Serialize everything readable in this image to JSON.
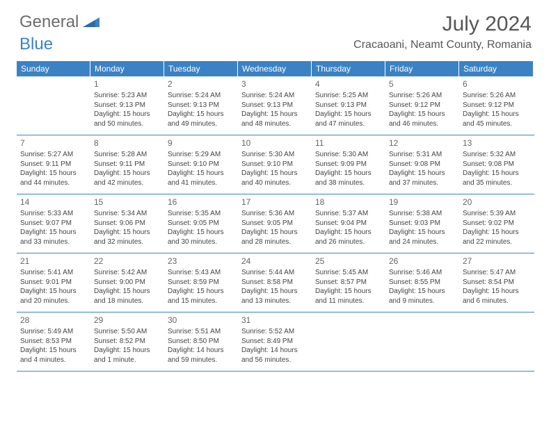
{
  "logo": {
    "text_general": "General",
    "text_blue": "Blue"
  },
  "title": "July 2024",
  "location": "Cracaoani, Neamt County, Romania",
  "colors": {
    "header_bg": "#3b82c4",
    "header_text": "#ffffff",
    "border": "#3b82c4",
    "body_text": "#444444",
    "daynum_text": "#666666",
    "page_bg": "#ffffff"
  },
  "day_headers": [
    "Sunday",
    "Monday",
    "Tuesday",
    "Wednesday",
    "Thursday",
    "Friday",
    "Saturday"
  ],
  "weeks": [
    [
      {
        "day": "",
        "sunrise": "",
        "sunset": "",
        "daylight1": "",
        "daylight2": ""
      },
      {
        "day": "1",
        "sunrise": "Sunrise: 5:23 AM",
        "sunset": "Sunset: 9:13 PM",
        "daylight1": "Daylight: 15 hours",
        "daylight2": "and 50 minutes."
      },
      {
        "day": "2",
        "sunrise": "Sunrise: 5:24 AM",
        "sunset": "Sunset: 9:13 PM",
        "daylight1": "Daylight: 15 hours",
        "daylight2": "and 49 minutes."
      },
      {
        "day": "3",
        "sunrise": "Sunrise: 5:24 AM",
        "sunset": "Sunset: 9:13 PM",
        "daylight1": "Daylight: 15 hours",
        "daylight2": "and 48 minutes."
      },
      {
        "day": "4",
        "sunrise": "Sunrise: 5:25 AM",
        "sunset": "Sunset: 9:13 PM",
        "daylight1": "Daylight: 15 hours",
        "daylight2": "and 47 minutes."
      },
      {
        "day": "5",
        "sunrise": "Sunrise: 5:26 AM",
        "sunset": "Sunset: 9:12 PM",
        "daylight1": "Daylight: 15 hours",
        "daylight2": "and 46 minutes."
      },
      {
        "day": "6",
        "sunrise": "Sunrise: 5:26 AM",
        "sunset": "Sunset: 9:12 PM",
        "daylight1": "Daylight: 15 hours",
        "daylight2": "and 45 minutes."
      }
    ],
    [
      {
        "day": "7",
        "sunrise": "Sunrise: 5:27 AM",
        "sunset": "Sunset: 9:11 PM",
        "daylight1": "Daylight: 15 hours",
        "daylight2": "and 44 minutes."
      },
      {
        "day": "8",
        "sunrise": "Sunrise: 5:28 AM",
        "sunset": "Sunset: 9:11 PM",
        "daylight1": "Daylight: 15 hours",
        "daylight2": "and 42 minutes."
      },
      {
        "day": "9",
        "sunrise": "Sunrise: 5:29 AM",
        "sunset": "Sunset: 9:10 PM",
        "daylight1": "Daylight: 15 hours",
        "daylight2": "and 41 minutes."
      },
      {
        "day": "10",
        "sunrise": "Sunrise: 5:30 AM",
        "sunset": "Sunset: 9:10 PM",
        "daylight1": "Daylight: 15 hours",
        "daylight2": "and 40 minutes."
      },
      {
        "day": "11",
        "sunrise": "Sunrise: 5:30 AM",
        "sunset": "Sunset: 9:09 PM",
        "daylight1": "Daylight: 15 hours",
        "daylight2": "and 38 minutes."
      },
      {
        "day": "12",
        "sunrise": "Sunrise: 5:31 AM",
        "sunset": "Sunset: 9:08 PM",
        "daylight1": "Daylight: 15 hours",
        "daylight2": "and 37 minutes."
      },
      {
        "day": "13",
        "sunrise": "Sunrise: 5:32 AM",
        "sunset": "Sunset: 9:08 PM",
        "daylight1": "Daylight: 15 hours",
        "daylight2": "and 35 minutes."
      }
    ],
    [
      {
        "day": "14",
        "sunrise": "Sunrise: 5:33 AM",
        "sunset": "Sunset: 9:07 PM",
        "daylight1": "Daylight: 15 hours",
        "daylight2": "and 33 minutes."
      },
      {
        "day": "15",
        "sunrise": "Sunrise: 5:34 AM",
        "sunset": "Sunset: 9:06 PM",
        "daylight1": "Daylight: 15 hours",
        "daylight2": "and 32 minutes."
      },
      {
        "day": "16",
        "sunrise": "Sunrise: 5:35 AM",
        "sunset": "Sunset: 9:05 PM",
        "daylight1": "Daylight: 15 hours",
        "daylight2": "and 30 minutes."
      },
      {
        "day": "17",
        "sunrise": "Sunrise: 5:36 AM",
        "sunset": "Sunset: 9:05 PM",
        "daylight1": "Daylight: 15 hours",
        "daylight2": "and 28 minutes."
      },
      {
        "day": "18",
        "sunrise": "Sunrise: 5:37 AM",
        "sunset": "Sunset: 9:04 PM",
        "daylight1": "Daylight: 15 hours",
        "daylight2": "and 26 minutes."
      },
      {
        "day": "19",
        "sunrise": "Sunrise: 5:38 AM",
        "sunset": "Sunset: 9:03 PM",
        "daylight1": "Daylight: 15 hours",
        "daylight2": "and 24 minutes."
      },
      {
        "day": "20",
        "sunrise": "Sunrise: 5:39 AM",
        "sunset": "Sunset: 9:02 PM",
        "daylight1": "Daylight: 15 hours",
        "daylight2": "and 22 minutes."
      }
    ],
    [
      {
        "day": "21",
        "sunrise": "Sunrise: 5:41 AM",
        "sunset": "Sunset: 9:01 PM",
        "daylight1": "Daylight: 15 hours",
        "daylight2": "and 20 minutes."
      },
      {
        "day": "22",
        "sunrise": "Sunrise: 5:42 AM",
        "sunset": "Sunset: 9:00 PM",
        "daylight1": "Daylight: 15 hours",
        "daylight2": "and 18 minutes."
      },
      {
        "day": "23",
        "sunrise": "Sunrise: 5:43 AM",
        "sunset": "Sunset: 8:59 PM",
        "daylight1": "Daylight: 15 hours",
        "daylight2": "and 15 minutes."
      },
      {
        "day": "24",
        "sunrise": "Sunrise: 5:44 AM",
        "sunset": "Sunset: 8:58 PM",
        "daylight1": "Daylight: 15 hours",
        "daylight2": "and 13 minutes."
      },
      {
        "day": "25",
        "sunrise": "Sunrise: 5:45 AM",
        "sunset": "Sunset: 8:57 PM",
        "daylight1": "Daylight: 15 hours",
        "daylight2": "and 11 minutes."
      },
      {
        "day": "26",
        "sunrise": "Sunrise: 5:46 AM",
        "sunset": "Sunset: 8:55 PM",
        "daylight1": "Daylight: 15 hours",
        "daylight2": "and 9 minutes."
      },
      {
        "day": "27",
        "sunrise": "Sunrise: 5:47 AM",
        "sunset": "Sunset: 8:54 PM",
        "daylight1": "Daylight: 15 hours",
        "daylight2": "and 6 minutes."
      }
    ],
    [
      {
        "day": "28",
        "sunrise": "Sunrise: 5:49 AM",
        "sunset": "Sunset: 8:53 PM",
        "daylight1": "Daylight: 15 hours",
        "daylight2": "and 4 minutes."
      },
      {
        "day": "29",
        "sunrise": "Sunrise: 5:50 AM",
        "sunset": "Sunset: 8:52 PM",
        "daylight1": "Daylight: 15 hours",
        "daylight2": "and 1 minute."
      },
      {
        "day": "30",
        "sunrise": "Sunrise: 5:51 AM",
        "sunset": "Sunset: 8:50 PM",
        "daylight1": "Daylight: 14 hours",
        "daylight2": "and 59 minutes."
      },
      {
        "day": "31",
        "sunrise": "Sunrise: 5:52 AM",
        "sunset": "Sunset: 8:49 PM",
        "daylight1": "Daylight: 14 hours",
        "daylight2": "and 56 minutes."
      },
      {
        "day": "",
        "sunrise": "",
        "sunset": "",
        "daylight1": "",
        "daylight2": ""
      },
      {
        "day": "",
        "sunrise": "",
        "sunset": "",
        "daylight1": "",
        "daylight2": ""
      },
      {
        "day": "",
        "sunrise": "",
        "sunset": "",
        "daylight1": "",
        "daylight2": ""
      }
    ]
  ]
}
